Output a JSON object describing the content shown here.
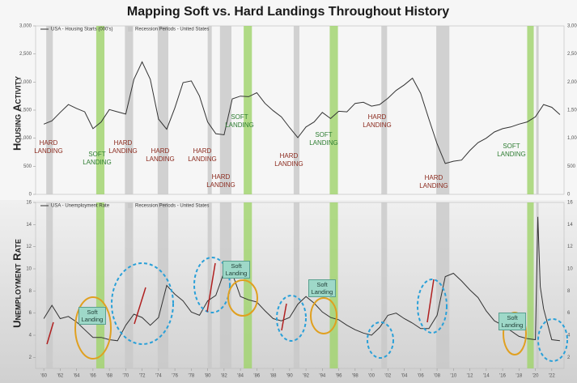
{
  "chart_data": [
    {
      "type": "line",
      "title": "Mapping Soft vs. Hard Landings Throughout History",
      "ylabel": "Housing Activity",
      "recession_label": "Recession Periods - United States",
      "recession_color": "#c8c8c8",
      "soft_color": "#9fd36a",
      "recessions": [
        [
          1960.3,
          1961.1
        ],
        [
          1969.9,
          1970.9
        ],
        [
          1973.9,
          1975.2
        ],
        [
          1980.0,
          1980.5
        ],
        [
          1981.5,
          1982.9
        ],
        [
          1990.5,
          1991.2
        ],
        [
          2001.2,
          2001.9
        ],
        [
          2007.9,
          2009.5
        ],
        [
          2020.1,
          2020.4
        ]
      ],
      "soft_landings": [
        [
          1966.4,
          1967.4
        ],
        [
          1984.4,
          1985.4
        ],
        [
          1994.9,
          1995.9
        ],
        [
          2019.0,
          2019.8
        ]
      ],
      "xlim": [
        1959,
        2023.5
      ],
      "ylim": [
        0,
        3000
      ],
      "yticks": [
        0,
        500,
        {
          "value": 1000,
          "label": "1,000"
        },
        {
          "value": 1500,
          "label": "1,500"
        },
        {
          "value": 2000,
          "label": "2,000"
        },
        {
          "value": 2500,
          "label": "2,500"
        },
        {
          "value": 3000,
          "label": "3,000"
        }
      ],
      "x": [
        1960,
        1961,
        1962,
        1963,
        1964,
        1965,
        1966,
        1967,
        1968,
        1969,
        1970,
        1971,
        1972,
        1973,
        1974,
        1975,
        1976,
        1977,
        1978,
        1979,
        1980,
        1981,
        1982,
        1983,
        1984,
        1985,
        1986,
        1987,
        1988,
        1989,
        1990,
        1991,
        1992,
        1993,
        1994,
        1995,
        1996,
        1997,
        1998,
        1999,
        2000,
        2001,
        2002,
        2003,
        2004,
        2005,
        2006,
        2007,
        2008,
        2009,
        2010,
        2011,
        2012,
        2013,
        2014,
        2015,
        2016,
        2017,
        2018,
        2019,
        2020,
        2021,
        2022,
        2023
      ],
      "series": [
        {
          "name": "USA - Housing Starts (000's)",
          "color": "#333333",
          "values": [
            1250,
            1310,
            1460,
            1600,
            1530,
            1470,
            1170,
            1290,
            1510,
            1470,
            1430,
            2050,
            2360,
            2050,
            1340,
            1160,
            1540,
            1990,
            2020,
            1750,
            1290,
            1080,
            1060,
            1700,
            1750,
            1740,
            1810,
            1620,
            1490,
            1380,
            1190,
            1010,
            1200,
            1290,
            1460,
            1350,
            1480,
            1470,
            1620,
            1640,
            1570,
            1600,
            1710,
            1850,
            1950,
            2070,
            1800,
            1340,
            900,
            550,
            590,
            610,
            780,
            920,
            1000,
            1110,
            1170,
            1200,
            1250,
            1290,
            1380,
            1600,
            1550,
            1420
          ]
        }
      ],
      "annotations": [
        {
          "text": "HARD LANDING",
          "color": "#8b2a1e"
        },
        {
          "text": "SOFT LANDING",
          "color": "#2e7d32"
        },
        {
          "text": "HARD LANDING",
          "color": "#8b2a1e"
        },
        {
          "text": "HARD LANDING",
          "color": "#8b2a1e"
        },
        {
          "text": "HARD LANDING",
          "color": "#8b2a1e"
        },
        {
          "text": "HARD LANDING",
          "color": "#8b2a1e"
        },
        {
          "text": "SOFT LANDING",
          "color": "#2e7d32"
        },
        {
          "text": "HARD LANDING",
          "color": "#8b2a1e"
        },
        {
          "text": "SOFT LANDING",
          "color": "#2e7d32"
        },
        {
          "text": "HARD LANDING",
          "color": "#8b2a1e"
        },
        {
          "text": "HARD LANDING",
          "color": "#8b2a1e"
        },
        {
          "text": "SOFT LANDING",
          "color": "#2e7d32"
        }
      ]
    },
    {
      "type": "line",
      "ylabel": "Unemployment Rate",
      "recession_label": "Recession Periods - United States",
      "recession_color": "#c8c8c8",
      "soft_color": "#9fd36a",
      "recessions": [
        [
          1960.3,
          1961.1
        ],
        [
          1969.9,
          1970.9
        ],
        [
          1973.9,
          1975.2
        ],
        [
          1980.0,
          1980.5
        ],
        [
          1981.5,
          1982.9
        ],
        [
          1990.5,
          1991.2
        ],
        [
          2001.2,
          2001.9
        ],
        [
          2007.9,
          2009.5
        ],
        [
          2020.1,
          2020.4
        ]
      ],
      "soft_landings": [
        [
          1966.4,
          1967.4
        ],
        [
          1984.4,
          1985.4
        ],
        [
          1994.9,
          1995.9
        ],
        [
          2019.0,
          2019.8
        ]
      ],
      "xlim": [
        1959,
        2023.5
      ],
      "ylim": [
        1,
        16
      ],
      "yticks": [
        2,
        4,
        6,
        8,
        10,
        12,
        14,
        16
      ],
      "xticks": [
        {
          "value": 1960,
          "label": "'60"
        },
        {
          "value": 1962,
          "label": "'62"
        },
        {
          "value": 1964,
          "label": "'64"
        },
        {
          "value": 1966,
          "label": "'66"
        },
        {
          "value": 1968,
          "label": "'68"
        },
        {
          "value": 1970,
          "label": "'70"
        },
        {
          "value": 1972,
          "label": "'72"
        },
        {
          "value": 1974,
          "label": "'74"
        },
        {
          "value": 1976,
          "label": "'76"
        },
        {
          "value": 1978,
          "label": "'78"
        },
        {
          "value": 1980,
          "label": "'80"
        },
        {
          "value": 1982,
          "label": "'82"
        },
        {
          "value": 1984,
          "label": "'84"
        },
        {
          "value": 1986,
          "label": "'86"
        },
        {
          "value": 1988,
          "label": "'88"
        },
        {
          "value": 1990,
          "label": "'90"
        },
        {
          "value": 1992,
          "label": "'92"
        },
        {
          "value": 1994,
          "label": "'94"
        },
        {
          "value": 1996,
          "label": "'96"
        },
        {
          "value": 1998,
          "label": "'98"
        },
        {
          "value": 2000,
          "label": "'00"
        },
        {
          "value": 2002,
          "label": "'02"
        },
        {
          "value": 2004,
          "label": "'04"
        },
        {
          "value": 2006,
          "label": "'06"
        },
        {
          "value": 2008,
          "label": "'08"
        },
        {
          "value": 2010,
          "label": "'10"
        },
        {
          "value": 2012,
          "label": "'12"
        },
        {
          "value": 2014,
          "label": "'14"
        },
        {
          "value": 2016,
          "label": "'16"
        },
        {
          "value": 2018,
          "label": "'18"
        },
        {
          "value": 2020,
          "label": "'20"
        },
        {
          "value": 2022,
          "label": "'22"
        }
      ],
      "x": [
        1960,
        1961,
        1962,
        1963,
        1964,
        1965,
        1966,
        1967,
        1968,
        1969,
        1970,
        1971,
        1972,
        1973,
        1974,
        1975,
        1976,
        1977,
        1978,
        1979,
        1980,
        1981,
        1982,
        1983,
        1984,
        1985,
        1986,
        1987,
        1988,
        1989,
        1990,
        1991,
        1992,
        1993,
        1994,
        1995,
        1996,
        1997,
        1998,
        1999,
        2000,
        2001,
        2002,
        2003,
        2004,
        2005,
        2006,
        2007,
        2008,
        2009,
        2010,
        2011,
        2012,
        2013,
        2014,
        2015,
        2016,
        2017,
        2018,
        2019,
        2020,
        2020.3,
        2020.6,
        2021,
        2022,
        2023
      ],
      "series": [
        {
          "name": "USA - Unemployment Rate",
          "color": "#333333",
          "values": [
            5.5,
            6.7,
            5.5,
            5.7,
            5.2,
            4.5,
            3.8,
            3.8,
            3.6,
            3.5,
            4.9,
            5.9,
            5.6,
            4.9,
            5.6,
            8.5,
            7.7,
            7.1,
            6.1,
            5.8,
            7.1,
            7.6,
            9.7,
            9.6,
            7.5,
            7.2,
            7.0,
            6.2,
            5.5,
            5.3,
            5.6,
            6.8,
            7.5,
            6.9,
            6.1,
            5.6,
            5.4,
            4.9,
            4.5,
            4.2,
            4.0,
            4.7,
            5.8,
            6.0,
            5.5,
            5.1,
            4.6,
            4.6,
            5.8,
            9.3,
            9.6,
            8.9,
            8.1,
            7.4,
            6.2,
            5.3,
            4.9,
            4.4,
            3.9,
            3.7,
            3.6,
            14.7,
            8.4,
            6.4,
            3.6,
            3.5
          ]
        }
      ],
      "annotations": [
        {
          "text": "Soft Landing"
        },
        {
          "text": "Soft Landing"
        },
        {
          "text": "Soft Landing"
        },
        {
          "text": "Soft Landing"
        }
      ]
    }
  ]
}
